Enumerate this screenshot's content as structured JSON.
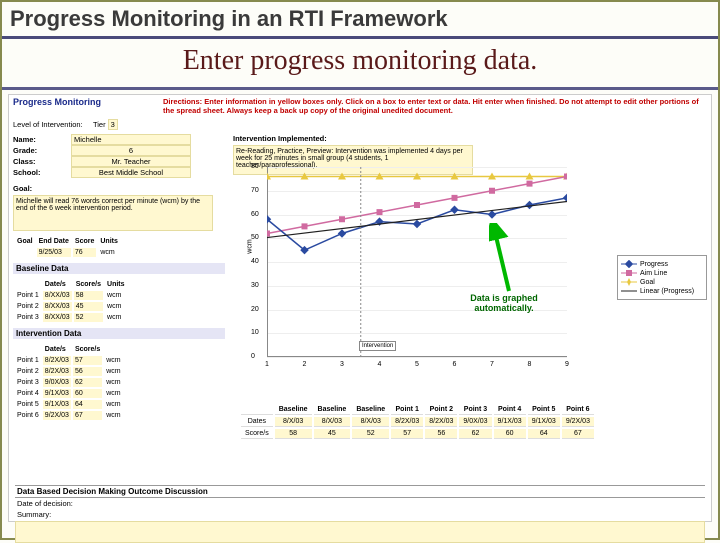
{
  "slide": {
    "title": "Progress Monitoring in an RTI Framework",
    "subtitle": "Enter progress monitoring data."
  },
  "sheet": {
    "header": "Progress Monitoring",
    "directions": "Directions: Enter information in yellow boxes only. Click on a box to enter text or data. Hit enter when finished. Do not attempt to edit other portions of the spread sheet. Always keep a back up copy of the original unedited document.",
    "level_label": "Level of Intervention:",
    "tier_label": "Tier",
    "tier_value": "3",
    "student": {
      "name_label": "Name:",
      "name": "Michelle",
      "grade_label": "Grade:",
      "grade": "6",
      "class_label": "Class:",
      "class": "Mr. Teacher",
      "school_label": "School:",
      "school": "Best Middle School"
    },
    "goal_label": "Goal:",
    "goal_text": "Michelle will read 76 words correct per minute (wcm) by the end of the 6 week intervention period.",
    "goal_table": {
      "h1": "Goal",
      "c1": "End Date",
      "c2": "Score",
      "c3": "Units",
      "end_date": "9/25/03",
      "score": "76",
      "units": "wcm"
    },
    "baseline": {
      "header": "Baseline Data",
      "cols": [
        "",
        "Date/s",
        "Score/s",
        "Units"
      ],
      "rows": [
        [
          "Point 1",
          "8/XX/03",
          "58",
          "wcm"
        ],
        [
          "Point 2",
          "8/XX/03",
          "45",
          "wcm"
        ],
        [
          "Point 3",
          "8/XX/03",
          "52",
          "wcm"
        ]
      ]
    },
    "intervention": {
      "header": "Intervention Data",
      "cols": [
        "",
        "Date/s",
        "Score/s"
      ],
      "rows": [
        [
          "Point 1",
          "8/2X/03",
          "57"
        ],
        [
          "Point 2",
          "8/2X/03",
          "56"
        ],
        [
          "Point 3",
          "9/0X/03",
          "62"
        ],
        [
          "Point 4",
          "9/1X/03",
          "60"
        ],
        [
          "Point 5",
          "9/1X/03",
          "64"
        ],
        [
          "Point 6",
          "9/2X/03",
          "67"
        ]
      ]
    },
    "impl_label": "Intervention Implemented:",
    "impl_text": "Re-Reading, Practice, Preview: Intervention was implemented 4 days per week for 25 minutes in small group (4 students, 1 teacher/paraprofessional).",
    "outcome": {
      "header": "Data Based Decision Making Outcome Discussion",
      "date_label": "Date of decision:",
      "summary_label": "Summary:"
    }
  },
  "chart": {
    "ylabel": "wcm",
    "yticks": [
      0,
      10,
      20,
      30,
      40,
      50,
      60,
      70,
      80
    ],
    "ylim": [
      0,
      80
    ],
    "xticks": [
      "1",
      "2",
      "3",
      "4",
      "5",
      "6",
      "7",
      "8",
      "9"
    ],
    "intervention_marker": "Intervention",
    "colors": {
      "progress": "#2a4aa0",
      "aimline": "#d06aa0",
      "goal": "#e8c840",
      "trend": "#202020",
      "grid": "#e0e0e0"
    },
    "series": {
      "progress": [
        58,
        45,
        52,
        57,
        56,
        62,
        60,
        64,
        67
      ],
      "aimline_start": 52,
      "aimline_end": 76,
      "goal": [
        76,
        76,
        76,
        76,
        76,
        76,
        76,
        76,
        76
      ]
    },
    "legend": {
      "progress": "Progress",
      "aimline": "Aim Line",
      "goal": "Goal",
      "trend": "Linear (Progress)"
    },
    "callout": "Data is graphed automatically."
  },
  "bottom_table": {
    "row_labels": [
      "",
      "Dates",
      "Score/s"
    ],
    "cols": [
      "Baseline",
      "Baseline",
      "Baseline",
      "Point 1",
      "Point 2",
      "Point 3",
      "Point 4",
      "Point 5",
      "Point 6"
    ],
    "dates": [
      "8/X/03",
      "8/X/03",
      "8/X/03",
      "8/2X/03",
      "8/2X/03",
      "9/0X/03",
      "9/1X/03",
      "9/1X/03",
      "9/2X/03"
    ],
    "scores": [
      "58",
      "45",
      "52",
      "57",
      "56",
      "62",
      "60",
      "64",
      "67"
    ]
  }
}
